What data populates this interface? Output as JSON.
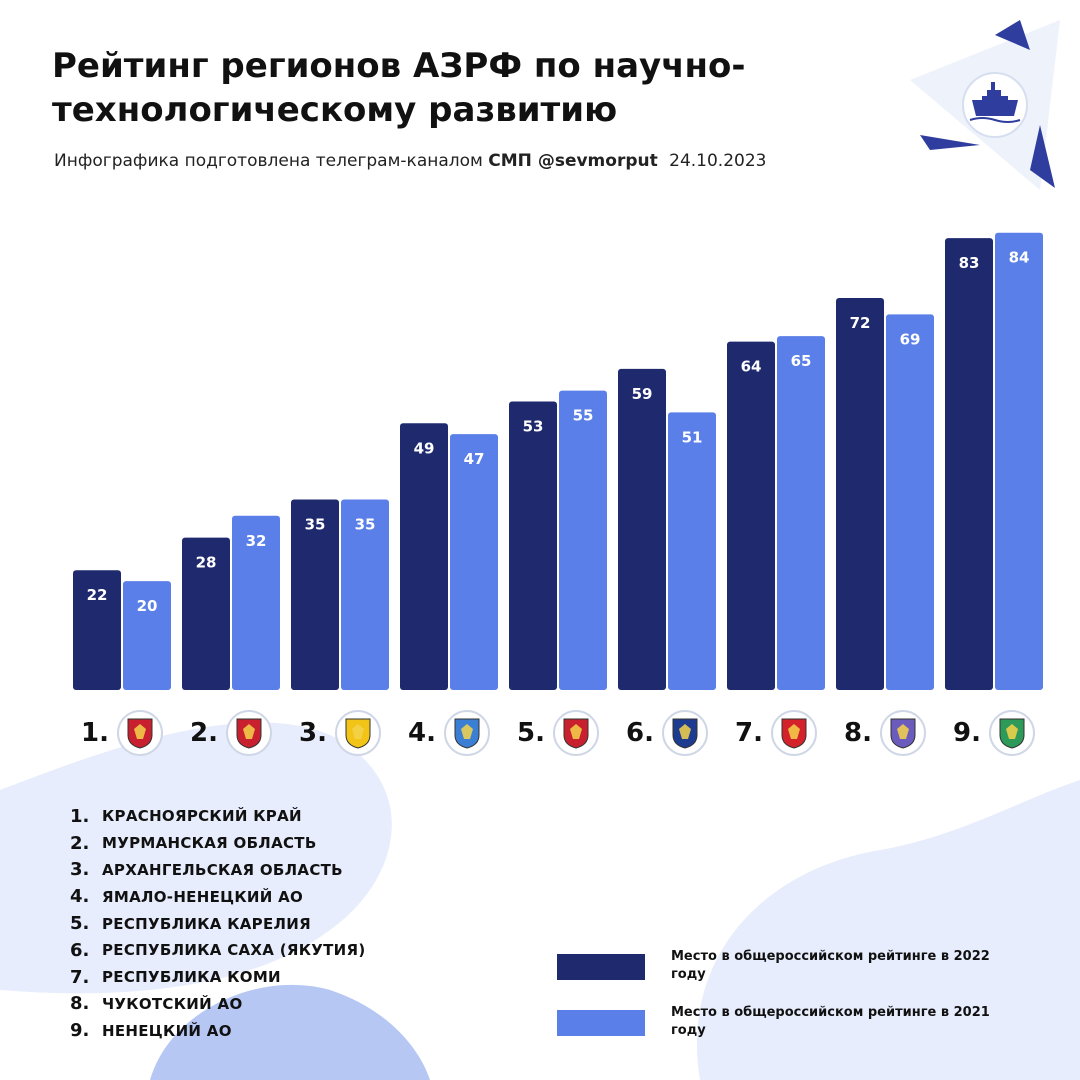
{
  "header": {
    "title": "Рейтинг регионов АЗРФ по научно-технологическому развитию",
    "subtitle_prefix": "Инфографика подготовлена телеграм-каналом",
    "subtitle_channel": "СМП @sevmorput",
    "subtitle_date": "24.10.2023"
  },
  "logo": {
    "icon": "icebreaker-ship-icon"
  },
  "colors": {
    "series_2022": "#1f2a6e",
    "series_2021": "#5b7fe8",
    "blob": "#e3eafc",
    "accent": "#2f3e9e"
  },
  "chart_data": {
    "type": "bar",
    "categories": [
      "1.",
      "2.",
      "3.",
      "4.",
      "5.",
      "6.",
      "7.",
      "8.",
      "9."
    ],
    "series": [
      {
        "name": "Место в общероссийском рейтинге в 2022 году",
        "values": [
          22,
          28,
          35,
          49,
          53,
          59,
          64,
          72,
          83
        ]
      },
      {
        "name": "Место в общероссийском рейтинге в 2021 году",
        "values": [
          20,
          32,
          35,
          47,
          55,
          51,
          65,
          69,
          84
        ]
      }
    ],
    "ylim": [
      0,
      85
    ],
    "grid": false,
    "legend_position": "bottom-right"
  },
  "regions": [
    {
      "num": "1.",
      "name": "КРАСНОЯРСКИЙ КРАЙ",
      "emblem": "krasnoyarsk-emblem-icon",
      "emblem_color": "#c8202f"
    },
    {
      "num": "2.",
      "name": "МУРМАНСКАЯ ОБЛАСТЬ",
      "emblem": "murmansk-emblem-icon",
      "emblem_color": "#c8202f"
    },
    {
      "num": "3.",
      "name": "АРХАНГЕЛЬСКАЯ ОБЛАСТЬ",
      "emblem": "arkhangelsk-emblem-icon",
      "emblem_color": "#f2c418"
    },
    {
      "num": "4.",
      "name": "ЯМАЛО-НЕНЕЦКИЙ АО",
      "emblem": "yamal-emblem-icon",
      "emblem_color": "#3a7fd4"
    },
    {
      "num": "5.",
      "name": "РЕСПУБЛИКА КАРЕЛИЯ",
      "emblem": "karelia-emblem-icon",
      "emblem_color": "#c8202f"
    },
    {
      "num": "6.",
      "name": "РЕСПУБЛИКА САХА (ЯКУТИЯ)",
      "emblem": "sakha-emblem-icon",
      "emblem_color": "#1d3c8f"
    },
    {
      "num": "7.",
      "name": "РЕСПУБЛИКА КОМИ",
      "emblem": "komi-emblem-icon",
      "emblem_color": "#d4222a"
    },
    {
      "num": "8.",
      "name": "ЧУКОТСКИЙ АО",
      "emblem": "chukotka-emblem-icon",
      "emblem_color": "#6a5bbd"
    },
    {
      "num": "9.",
      "name": "НЕНЕЦКИЙ АО",
      "emblem": "nenets-emblem-icon",
      "emblem_color": "#2e9a5a"
    }
  ],
  "legend": [
    {
      "label": "Место в общероссийском рейтинге в 2022 году"
    },
    {
      "label": "Место в общероссийском рейтинге в 2021 году"
    }
  ]
}
